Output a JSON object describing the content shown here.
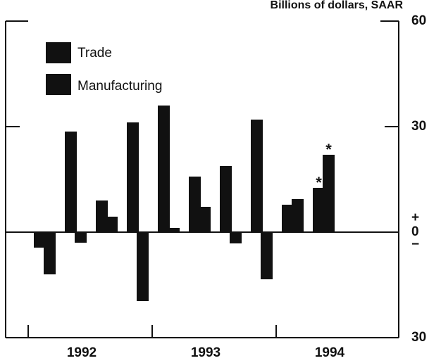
{
  "chart_data": {
    "type": "bar",
    "unit_label": "Billions of dollars, SAAR",
    "categories": [
      null,
      null,
      null,
      null,
      null,
      null,
      null,
      null,
      null,
      null
    ],
    "year_labels": [
      "1992",
      "1993",
      "1994"
    ],
    "series": [
      {
        "name": "Trade",
        "color": "#111111",
        "values": [
          -4.4,
          28.6,
          9,
          31.2,
          36,
          15.8,
          18.8,
          32,
          7.8,
          12.6
        ]
      },
      {
        "name": "Manufacturing",
        "color": "#111111",
        "values": [
          -12,
          -3,
          4.4,
          -19.6,
          1.2,
          7.2,
          -3.2,
          -13.4,
          9.4,
          22
        ]
      }
    ],
    "annotations": [
      "*",
      "*"
    ],
    "zero_signs": [
      "+",
      "−"
    ],
    "ylim": [
      -30,
      60
    ],
    "yticks": [
      {
        "value": -30,
        "label": "30"
      },
      0,
      30,
      60
    ],
    "legend": "top-left"
  }
}
